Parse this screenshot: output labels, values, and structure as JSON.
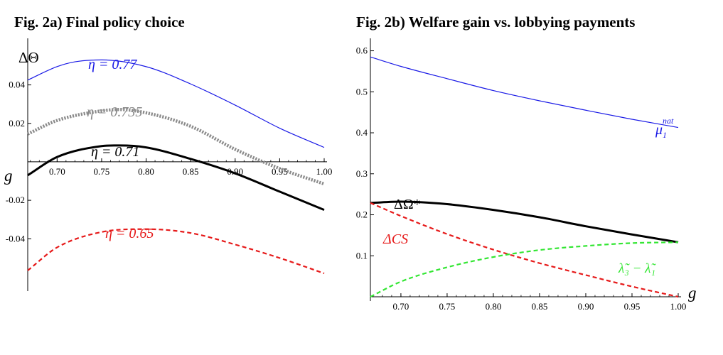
{
  "panels": [
    {
      "title": "Fig. 2a) Final policy choice"
    },
    {
      "title": "Fig. 2b) Welfare gain vs. lobbying payments"
    }
  ],
  "chart_data": [
    {
      "type": "line",
      "title": "Fig. 2a) Final policy choice",
      "xlabel": "g",
      "ylabel": "ΔΘ",
      "xlim": [
        0.667,
        1.0
      ],
      "ylim": [
        -0.065,
        0.062
      ],
      "x_ticks": [
        "0.70",
        "0.75",
        "0.80",
        "0.85",
        "0.90",
        "0.95",
        "1.00"
      ],
      "y_ticks": [
        "-0.04",
        "-0.02",
        "0.02",
        "0.04"
      ],
      "x_tick_values": [
        0.7,
        0.75,
        0.8,
        0.85,
        0.9,
        0.95,
        1.0
      ],
      "y_tick_values": [
        -0.04,
        -0.02,
        0.02,
        0.04
      ],
      "grid": false,
      "series": [
        {
          "name": "η = 0.77",
          "color": "#1a1ae6",
          "style": "solid-thin",
          "x": [
            0.667,
            0.7,
            0.72,
            0.75,
            0.8,
            0.85,
            0.9,
            0.95,
            1.0
          ],
          "y": [
            0.0425,
            0.0495,
            0.052,
            0.053,
            0.0495,
            0.0405,
            0.0295,
            0.0175,
            0.0075
          ]
        },
        {
          "name": "η = 0.735",
          "color": "#8a8a8a",
          "style": "dotted-thick",
          "x": [
            0.667,
            0.7,
            0.75,
            0.77,
            0.8,
            0.85,
            0.9,
            0.95,
            1.0
          ],
          "y": [
            0.0145,
            0.0215,
            0.0265,
            0.0272,
            0.0255,
            0.0185,
            0.0065,
            -0.0035,
            -0.0115
          ]
        },
        {
          "name": "η = 0.71",
          "color": "#000000",
          "style": "solid-thick",
          "x": [
            0.667,
            0.7,
            0.75,
            0.77,
            0.8,
            0.85,
            0.9,
            0.95,
            1.0
          ],
          "y": [
            -0.007,
            0.0025,
            0.0082,
            0.0085,
            0.0075,
            0.0015,
            -0.006,
            -0.0155,
            -0.025
          ]
        },
        {
          "name": "η = 0.65",
          "color": "#e61a1a",
          "style": "dashed",
          "x": [
            0.667,
            0.7,
            0.75,
            0.8,
            0.85,
            0.9,
            0.95,
            1.0
          ],
          "y": [
            -0.0565,
            -0.0445,
            -0.0365,
            -0.035,
            -0.037,
            -0.043,
            -0.05,
            -0.058
          ]
        }
      ]
    },
    {
      "type": "line",
      "title": "Fig. 2b) Welfare gain vs. lobbying payments",
      "xlabel": "g",
      "ylabel": "",
      "xlim": [
        0.667,
        1.0
      ],
      "ylim": [
        0.0,
        0.62
      ],
      "x_ticks": [
        "0.70",
        "0.75",
        "0.80",
        "0.85",
        "0.90",
        "0.95",
        "1.00"
      ],
      "y_ticks": [
        "0.1",
        "0.2",
        "0.3",
        "0.4",
        "0.5",
        "0.6"
      ],
      "x_tick_values": [
        0.7,
        0.75,
        0.8,
        0.85,
        0.9,
        0.95,
        1.0
      ],
      "y_tick_values": [
        0.1,
        0.2,
        0.3,
        0.4,
        0.5,
        0.6
      ],
      "grid": false,
      "series": [
        {
          "name": "μ₁^nat",
          "color": "#1a1ae6",
          "style": "solid-thin",
          "x": [
            0.667,
            0.7,
            0.75,
            0.8,
            0.85,
            0.9,
            0.95,
            1.0
          ],
          "y": [
            0.585,
            0.562,
            0.532,
            0.503,
            0.478,
            0.455,
            0.433,
            0.413
          ]
        },
        {
          "name": "ΔΩ*",
          "color": "#000000",
          "style": "solid-thick",
          "x": [
            0.667,
            0.7,
            0.75,
            0.8,
            0.85,
            0.9,
            0.95,
            1.0
          ],
          "y": [
            0.229,
            0.232,
            0.226,
            0.212,
            0.194,
            0.172,
            0.152,
            0.133
          ]
        },
        {
          "name": "ΔCS",
          "color": "#e61a1a",
          "style": "dashed",
          "x": [
            0.667,
            0.7,
            0.75,
            0.8,
            0.85,
            0.9,
            0.95,
            1.0
          ],
          "y": [
            0.229,
            0.197,
            0.153,
            0.115,
            0.082,
            0.053,
            0.025,
            0.0
          ]
        },
        {
          "name": "λ̃₃ − λ̃₁",
          "color": "#33e633",
          "style": "dashed",
          "x": [
            0.667,
            0.7,
            0.75,
            0.8,
            0.85,
            0.9,
            0.95,
            1.0
          ],
          "y": [
            0.0,
            0.037,
            0.072,
            0.097,
            0.114,
            0.124,
            0.131,
            0.133
          ]
        }
      ]
    }
  ],
  "labels_a": {
    "eta077": "η = 0.77",
    "eta0735": "η = 0.735",
    "eta071": "η = 0.71",
    "eta065": "η = 0.65",
    "ylabel": "ΔΘ",
    "xlabel": "g"
  },
  "labels_b": {
    "mu": "μ",
    "mu_sub": "1",
    "mu_sup": "nat",
    "omega": "ΔΩ*",
    "cs": "ΔCS",
    "lam": "λ̃₃ − λ̃₁",
    "xlabel": "g"
  }
}
